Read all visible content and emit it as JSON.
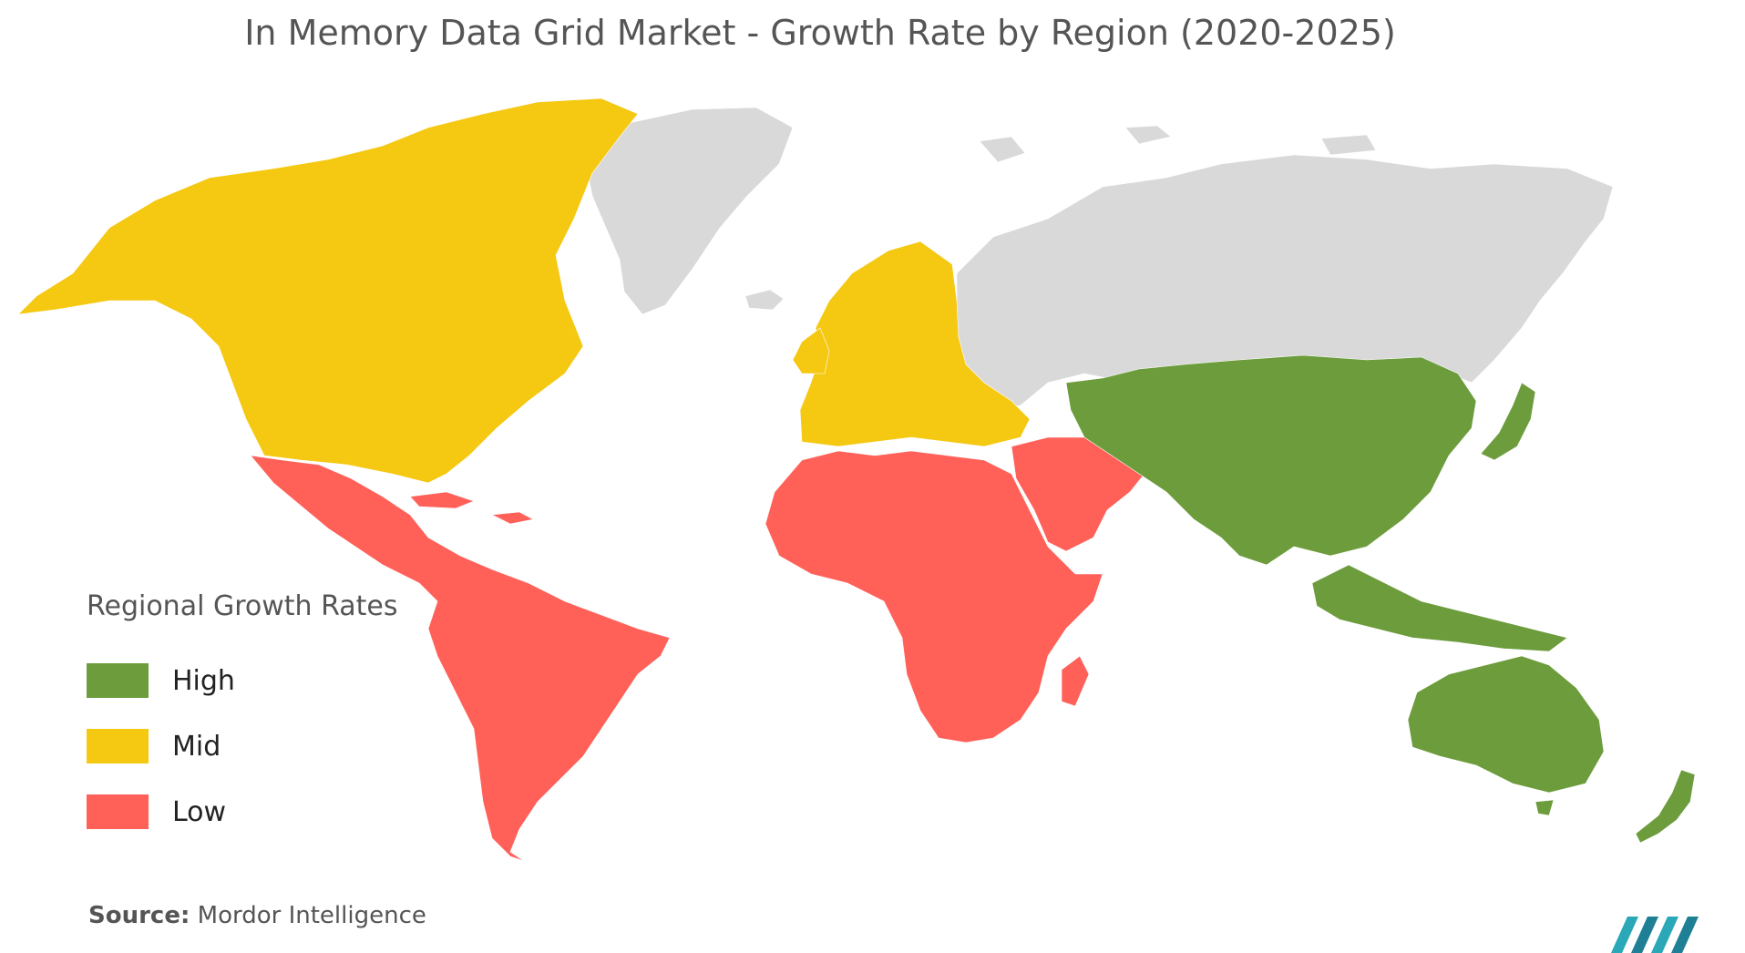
{
  "title": "In Memory Data Grid Market - Growth Rate by Region (2020-2025)",
  "legend": {
    "title": "Regional Growth Rates",
    "items": [
      {
        "label": "High",
        "color": "#6c9c3c"
      },
      {
        "label": "Mid",
        "color": "#f5c812"
      },
      {
        "label": "Low",
        "color": "#ff6159"
      }
    ]
  },
  "no_data_color": "#d9d9d9",
  "regions": {
    "north_america": "Mid",
    "europe": "Mid",
    "latin_america": "Low",
    "middle_east_africa": "Low",
    "asia_pacific": "High"
  },
  "source": {
    "label": "Source:",
    "value": "Mordor Intelligence"
  },
  "logo_icon": "mordor-intelligence-logo-icon"
}
